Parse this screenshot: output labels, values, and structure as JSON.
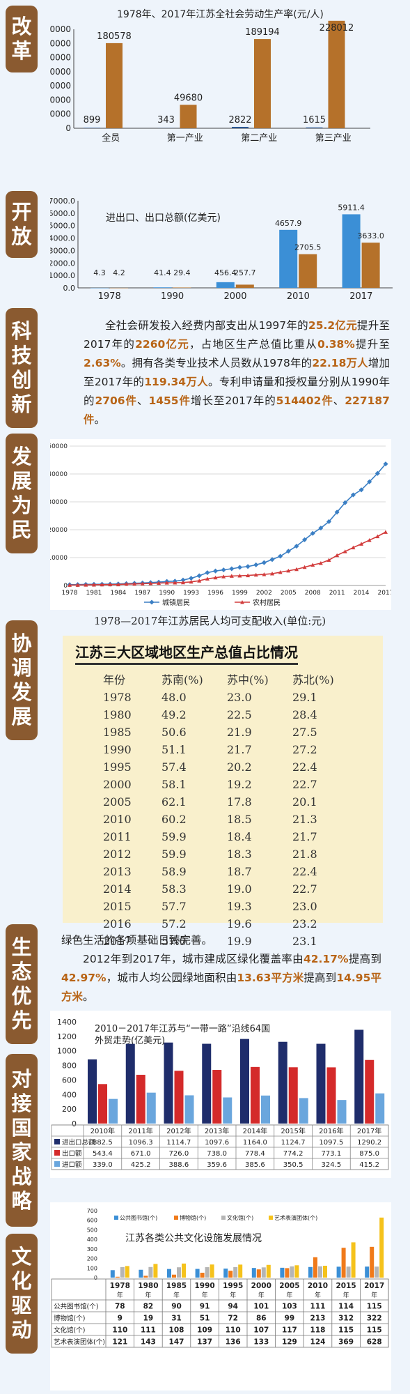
{
  "sections": {
    "gaige": [
      "改",
      "革"
    ],
    "kaifang": [
      "开",
      "放"
    ],
    "keji": [
      "科",
      "技",
      "创",
      "新"
    ],
    "fazhan": [
      "发",
      "展",
      "为",
      "民"
    ],
    "xietiao": [
      "协",
      "调",
      "发",
      "展"
    ],
    "shengtai": [
      "生",
      "态",
      "优",
      "先"
    ],
    "duijie": [
      "对",
      "接",
      "国",
      "家",
      "战",
      "略"
    ],
    "wenhua": [
      "文",
      "化",
      "驱",
      "动"
    ]
  },
  "colors": {
    "brown": "#b5712a",
    "navy": "#1f2d6b",
    "blue": "#3b8fd6",
    "lightblue": "#6aa6dd",
    "red": "#d42a2a",
    "orange": "#f0a020",
    "seal": "#8a5a30",
    "highlight": "#b86416"
  },
  "chart1": {
    "title": "1978年、2017年江苏全社会劳动生产率(元/人)",
    "categories": [
      "全员",
      "第一产业",
      "第二产业",
      "第三产业"
    ],
    "series": [
      {
        "values": [
          899,
          343,
          2822,
          1615
        ]
      },
      {
        "values": [
          180578,
          49680,
          189194,
          228012
        ]
      }
    ],
    "value_labels": [
      [
        "899",
        "343",
        "2822",
        "1615"
      ],
      [
        "180578",
        "49680",
        "189194",
        "228012"
      ]
    ],
    "yticks": [
      "0",
      "30000",
      "60000",
      "90000",
      "120000",
      "150000",
      "180000",
      "210000"
    ]
  },
  "chart2": {
    "title": "进出口、出口总额(亿美元)",
    "categories": [
      "1978",
      "1990",
      "2000",
      "2010",
      "2017"
    ],
    "series": [
      {
        "values": [
          4.3,
          41.4,
          456.4,
          4657.9,
          5911.4
        ]
      },
      {
        "values": [
          4.2,
          29.4,
          257.7,
          2705.5,
          3633.0
        ]
      }
    ],
    "value_labels": [
      [
        "4.3",
        "41.4",
        "456.4",
        "4657.9",
        "5911.4"
      ],
      [
        "4.2",
        "29.4",
        "257.7",
        "2705.5",
        "3633.0"
      ]
    ],
    "yticks": [
      "0.0",
      "1000.0",
      "2000.0",
      "3000.0",
      "4000.0",
      "5000.0",
      "6000.0",
      "7000.0"
    ]
  },
  "keji_text": {
    "parts": [
      {
        "t": "全社会研发投入经费内部支出从1997年的",
        "h": false
      },
      {
        "t": "25.2亿元",
        "h": true
      },
      {
        "t": "提升至2017年的",
        "h": false
      },
      {
        "t": "2260亿元",
        "h": true
      },
      {
        "t": "，占地区生产总值比重从",
        "h": false
      },
      {
        "t": "0.38%",
        "h": true
      },
      {
        "t": "提升至",
        "h": false
      },
      {
        "t": "2.63%",
        "h": true
      },
      {
        "t": "。拥有各类专业技术人员数从1978年的",
        "h": false
      },
      {
        "t": "22.18万人",
        "h": true
      },
      {
        "t": "增加至2017年的",
        "h": false
      },
      {
        "t": "119.34万人",
        "h": true
      },
      {
        "t": "。专利申请量和授权量分别从1990年的",
        "h": false
      },
      {
        "t": "2706件",
        "h": true
      },
      {
        "t": "、",
        "h": false
      },
      {
        "t": "1455件",
        "h": true
      },
      {
        "t": "增长至2017年的",
        "h": false
      },
      {
        "t": "514402件",
        "h": true
      },
      {
        "t": "、",
        "h": false
      },
      {
        "t": "227187件",
        "h": true
      },
      {
        "t": "。",
        "h": false
      }
    ]
  },
  "chart3": {
    "caption": "1978—2017年江苏居民人均可支配收入(单位:元)",
    "xticks": [
      "1978",
      "1981",
      "1984",
      "1987",
      "1990",
      "1993",
      "1996",
      "1999",
      "2002",
      "2005",
      "2008",
      "2011",
      "2014",
      "2017"
    ],
    "yticks": [
      "0",
      "10000",
      "20000",
      "30000",
      "40000",
      "50000"
    ],
    "ylim": [
      0,
      50000
    ],
    "x": [
      1978,
      1979,
      1980,
      1981,
      1982,
      1983,
      1984,
      1985,
      1986,
      1987,
      1988,
      1989,
      1990,
      1991,
      1992,
      1993,
      1994,
      1995,
      1996,
      1997,
      1998,
      1999,
      2000,
      2001,
      2002,
      2003,
      2004,
      2005,
      2006,
      2007,
      2008,
      2009,
      2010,
      2011,
      2012,
      2013,
      2014,
      2015,
      2016,
      2017
    ],
    "series": [
      {
        "name": "城镇居民",
        "color": "#3b7fc4",
        "values": [
          288,
          320,
          400,
          430,
          460,
          480,
          560,
          680,
          810,
          900,
          1050,
          1200,
          1460,
          1550,
          1950,
          2600,
          3500,
          4600,
          5200,
          5600,
          6000,
          6500,
          6800,
          7400,
          8200,
          9300,
          10500,
          12300,
          14100,
          16400,
          18700,
          20600,
          22900,
          26300,
          29700,
          32500,
          34300,
          37200,
          40200,
          43600
        ]
      },
      {
        "name": "农村居民",
        "color": "#d23c3c",
        "values": [
          155,
          170,
          220,
          260,
          300,
          330,
          350,
          490,
          550,
          630,
          750,
          850,
          960,
          990,
          1050,
          1300,
          1700,
          2400,
          2800,
          3200,
          3400,
          3500,
          3600,
          3800,
          3980,
          4240,
          4750,
          5280,
          5810,
          6560,
          7360,
          8000,
          9120,
          10800,
          12200,
          13600,
          14900,
          16260,
          17600,
          19158
        ]
      }
    ]
  },
  "table_region": {
    "title": "江苏三大区域地区生产总值占比情况",
    "headers": [
      "年份",
      "苏南(%)",
      "苏中(%)",
      "苏北(%)"
    ],
    "rows": [
      [
        "1978",
        "48.0",
        "23.0",
        "29.1"
      ],
      [
        "1980",
        "49.2",
        "22.5",
        "28.4"
      ],
      [
        "1985",
        "50.6",
        "21.9",
        "27.5"
      ],
      [
        "1990",
        "51.1",
        "21.7",
        "27.2"
      ],
      [
        "1995",
        "57.4",
        "20.2",
        "22.4"
      ],
      [
        "2000",
        "58.1",
        "19.2",
        "22.7"
      ],
      [
        "2005",
        "62.1",
        "17.8",
        "20.1"
      ],
      [
        "2010",
        "60.2",
        "18.5",
        "21.3"
      ],
      [
        "2011",
        "59.9",
        "18.4",
        "21.7"
      ],
      [
        "2012",
        "59.9",
        "18.3",
        "21.8"
      ],
      [
        "2013",
        "58.9",
        "18.7",
        "22.4"
      ],
      [
        "2014",
        "58.3",
        "19.0",
        "22.7"
      ],
      [
        "2015",
        "57.7",
        "19.3",
        "23.0"
      ],
      [
        "2016",
        "57.2",
        "19.6",
        "23.2"
      ],
      [
        "2017",
        "57.0",
        "19.9",
        "23.1"
      ]
    ]
  },
  "shengtai_text": {
    "line1": "绿色生活的各项基础日臻完善。",
    "parts": [
      {
        "t": "2012年到2017年，城市建成区绿化覆盖率由",
        "h": false
      },
      {
        "t": "42.17%",
        "h": true
      },
      {
        "t": "提高到",
        "h": false
      },
      {
        "t": "42.97%",
        "h": true
      },
      {
        "t": "，城市人均公园绿地面积由",
        "h": false
      },
      {
        "t": "13.63平方米",
        "h": true
      },
      {
        "t": "提高到",
        "h": false
      },
      {
        "t": "14.95平方米",
        "h": true
      },
      {
        "t": "。",
        "h": false
      }
    ]
  },
  "chart4": {
    "title_l1": "2010－2017年江苏与“一带一路”沿线64国",
    "title_l2": "外贸走势(亿美元)",
    "categories": [
      "2010年",
      "2011年",
      "2012年",
      "2013年",
      "2014年",
      "2015年",
      "2016年",
      "2017年"
    ],
    "yticks": [
      "0",
      "200",
      "400",
      "600",
      "800",
      "1000",
      "1200",
      "1400"
    ],
    "ylim": [
      0,
      1400
    ],
    "series": [
      {
        "name": "进出口总额",
        "color": "#1f2d6b",
        "values": [
          882.5,
          1096.3,
          1114.7,
          1097.6,
          1164.0,
          1124.7,
          1097.5,
          1290.2
        ],
        "labels": [
          "882.5",
          "1096.3",
          "1114.7",
          "1097.6",
          "1164.0",
          "1124.7",
          "1097.5",
          "1290.2"
        ]
      },
      {
        "name": "出口额",
        "color": "#d42a2a",
        "values": [
          543.4,
          671.0,
          726.0,
          738.0,
          778.4,
          774.2,
          773.1,
          875.0
        ],
        "labels": [
          "543.4",
          "671.0",
          "726.0",
          "738.0",
          "778.4",
          "774.2",
          "773.1",
          "875.0"
        ]
      },
      {
        "name": "进口额",
        "color": "#6aa6dd",
        "values": [
          339.0,
          425.2,
          388.6,
          359.6,
          385.6,
          350.5,
          324.5,
          415.2
        ],
        "labels": [
          "339.0",
          "425.2",
          "388.6",
          "359.6",
          "385.6",
          "350.5",
          "324.5",
          "415.2"
        ]
      }
    ]
  },
  "chart5": {
    "legend": [
      "公共图书馆(个)",
      "博物馆(个)",
      "文化馆(个)",
      "艺术表演团体(个)"
    ],
    "title": "江苏各类公共文化设施发展情况",
    "years": [
      "1978",
      "1980",
      "1985",
      "1990",
      "1995",
      "2000",
      "2005",
      "2010",
      "2015",
      "2017"
    ],
    "year_suffix": "年",
    "yticks": [
      "0",
      "100",
      "200",
      "300",
      "400",
      "500",
      "600",
      "700"
    ],
    "ylim": [
      0,
      700
    ],
    "series": [
      {
        "name": "公共图书馆(个)",
        "color": "#3b8fd6",
        "values": [
          78,
          82,
          90,
          91,
          94,
          101,
          103,
          111,
          114,
          115
        ],
        "labels": [
          "78",
          "82",
          "90",
          "91",
          "94",
          "101",
          "103",
          "111",
          "114",
          "115"
        ]
      },
      {
        "name": "博物馆(个)",
        "color": "#f07a1a",
        "values": [
          9,
          19,
          31,
          51,
          72,
          86,
          99,
          213,
          312,
          322
        ],
        "labels": [
          "9",
          "19",
          "31",
          "51",
          "72",
          "86",
          "99",
          "213",
          "312",
          "322"
        ]
      },
      {
        "name": "文化馆(个)",
        "color": "#b5b5b5",
        "values": [
          110,
          111,
          108,
          109,
          110,
          107,
          117,
          118,
          115,
          115
        ],
        "labels": [
          "110",
          "111",
          "108",
          "109",
          "110",
          "107",
          "117",
          "118",
          "115",
          "115"
        ]
      },
      {
        "name": "艺术表演团体(个)",
        "color": "#f5c21b",
        "values": [
          121,
          143,
          147,
          137,
          136,
          133,
          129,
          124,
          369,
          628
        ],
        "labels": [
          "121",
          "143",
          "147",
          "137",
          "136",
          "133",
          "129",
          "124",
          "369",
          "628"
        ]
      }
    ]
  }
}
